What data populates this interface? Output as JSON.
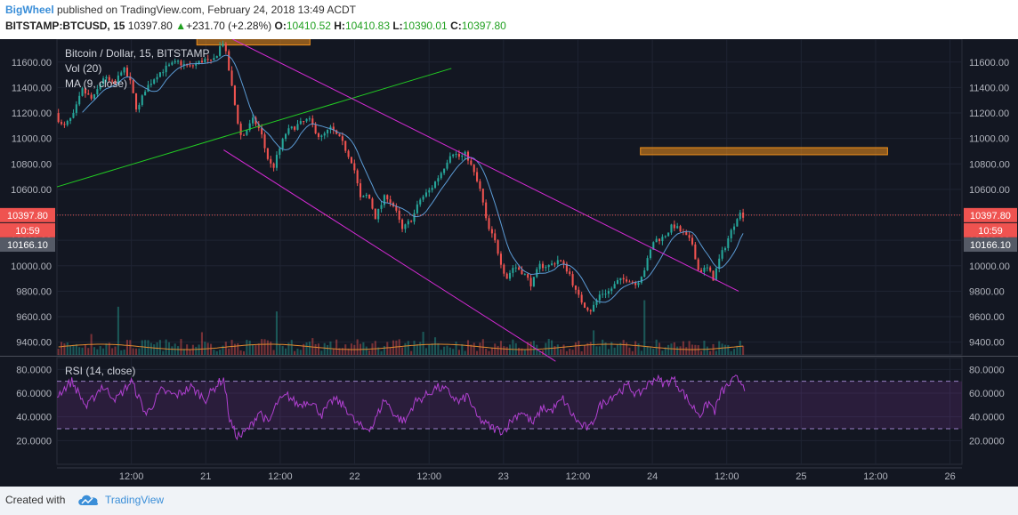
{
  "header": {
    "author": "BigWheel",
    "published_text": " published on TradingView.com, February 24, 2018 13:49 ACDT",
    "symbol": "BITSTAMP:BTCUSD, 15",
    "last": "10397.80",
    "change": "+231.70 (+2.28%)",
    "o_label": "O:",
    "o_value": "10410.52",
    "h_label": "H:",
    "h_value": "10410.83",
    "l_label": "L:",
    "l_value": "10390.01",
    "c_label": "C:",
    "c_value": "10397.80"
  },
  "legend": {
    "main": "Bitcoin / Dollar, 15, BITSTAMP",
    "vol": "Vol (20)",
    "ma": "MA (9, close)",
    "rsi": "RSI (14, close)"
  },
  "badges": {
    "price": "10397.80",
    "countdown": "10:59",
    "ma_value": "10166.10"
  },
  "footer": {
    "created_with": "Created with",
    "brand": "TradingView"
  },
  "colors": {
    "background": "#131722",
    "up": "#26a69a",
    "down": "#ef5350",
    "channel": "#d42ad4",
    "trendline": "#22cc22",
    "zone": "#f0901c",
    "rsi": "#b040d0",
    "ma": "#5b9bd5",
    "vol_ma": "#e08a30"
  },
  "chart_data": [
    {
      "type": "candlestick",
      "title": "Bitcoin / Dollar, 15, BITSTAMP",
      "interval": "15",
      "ylim": [
        9300,
        11780
      ],
      "y_ticks": [
        9400,
        9600,
        9800,
        10000,
        10200,
        10400,
        10600,
        10800,
        11000,
        11200,
        11400,
        11600
      ],
      "y_tick_labels": [
        "9400.00",
        "9600.00",
        "9800.00",
        "10000.00",
        "10200.00",
        "10400.00",
        "10600.00",
        "10800.00",
        "11000.00",
        "11200.00",
        "11400.00",
        "11600.00"
      ],
      "x_ticks": [
        "12:00",
        "21",
        "12:00",
        "22",
        "12:00",
        "23",
        "12:00",
        "24",
        "12:00",
        "25",
        "12:00",
        "26"
      ],
      "x_tick_pos_days": [
        0.5,
        1.0,
        1.5,
        2.0,
        2.5,
        3.0,
        3.5,
        4.0,
        4.5,
        5.0,
        5.5,
        6.0
      ],
      "x_range_days": [
        0.0,
        6.08
      ],
      "last_price": 10397.8,
      "ma_value": 10166.1,
      "price_path": [
        [
          0.0,
          11200
        ],
        [
          0.05,
          11080
        ],
        [
          0.12,
          11180
        ],
        [
          0.18,
          11380
        ],
        [
          0.25,
          11300
        ],
        [
          0.32,
          11480
        ],
        [
          0.4,
          11420
        ],
        [
          0.45,
          11560
        ],
        [
          0.5,
          11450
        ],
        [
          0.55,
          11210
        ],
        [
          0.6,
          11380
        ],
        [
          0.68,
          11500
        ],
        [
          0.75,
          11560
        ],
        [
          0.82,
          11600
        ],
        [
          0.9,
          11560
        ],
        [
          1.0,
          11620
        ],
        [
          1.05,
          11590
        ],
        [
          1.1,
          11700
        ],
        [
          1.12,
          11780
        ],
        [
          1.15,
          11640
        ],
        [
          1.2,
          11300
        ],
        [
          1.22,
          11160
        ],
        [
          1.25,
          11000
        ],
        [
          1.28,
          11060
        ],
        [
          1.33,
          11150
        ],
        [
          1.38,
          11050
        ],
        [
          1.42,
          10860
        ],
        [
          1.46,
          10760
        ],
        [
          1.5,
          10900
        ],
        [
          1.55,
          11050
        ],
        [
          1.62,
          11100
        ],
        [
          1.7,
          11150
        ],
        [
          1.78,
          11000
        ],
        [
          1.85,
          11080
        ],
        [
          1.92,
          10980
        ],
        [
          2.0,
          10800
        ],
        [
          2.05,
          10520
        ],
        [
          2.1,
          10560
        ],
        [
          2.15,
          10380
        ],
        [
          2.22,
          10560
        ],
        [
          2.28,
          10450
        ],
        [
          2.33,
          10280
        ],
        [
          2.4,
          10380
        ],
        [
          2.45,
          10520
        ],
        [
          2.52,
          10600
        ],
        [
          2.6,
          10750
        ],
        [
          2.66,
          10900
        ],
        [
          2.72,
          10850
        ],
        [
          2.76,
          10880
        ],
        [
          2.82,
          10700
        ],
        [
          2.86,
          10570
        ],
        [
          2.9,
          10310
        ],
        [
          2.95,
          10200
        ],
        [
          3.0,
          10000
        ],
        [
          3.03,
          9900
        ],
        [
          3.08,
          10000
        ],
        [
          3.14,
          9950
        ],
        [
          3.2,
          9850
        ],
        [
          3.25,
          10000
        ],
        [
          3.32,
          10000
        ],
        [
          3.38,
          10050
        ],
        [
          3.45,
          9950
        ],
        [
          3.5,
          9780
        ],
        [
          3.56,
          9680
        ],
        [
          3.6,
          9650
        ],
        [
          3.66,
          9780
        ],
        [
          3.72,
          9800
        ],
        [
          3.78,
          9880
        ],
        [
          3.85,
          9900
        ],
        [
          3.9,
          9850
        ],
        [
          3.96,
          9980
        ],
        [
          4.02,
          10200
        ],
        [
          4.08,
          10220
        ],
        [
          4.15,
          10320
        ],
        [
          4.22,
          10250
        ],
        [
          4.28,
          10170
        ],
        [
          4.32,
          9960
        ],
        [
          4.38,
          9980
        ],
        [
          4.42,
          9900
        ],
        [
          4.46,
          10050
        ],
        [
          4.5,
          10160
        ],
        [
          4.55,
          10300
        ],
        [
          4.58,
          10390
        ],
        [
          4.6,
          10410
        ],
        [
          4.62,
          10398
        ]
      ],
      "volume": {
        "ylim": [
          0,
          600
        ]
      },
      "annotations": [
        {
          "type": "zone",
          "from": [
            0.94,
            11762
          ],
          "to": [
            1.7,
            11762
          ]
        },
        {
          "type": "zone",
          "from": [
            3.92,
            10900
          ],
          "to": [
            5.58,
            10900
          ]
        },
        {
          "type": "trendline",
          "color": "green",
          "from": [
            0.0,
            10620
          ],
          "to": [
            2.65,
            11550
          ]
        },
        {
          "type": "channel_line",
          "color": "magenta",
          "from": [
            1.18,
            11780
          ],
          "to": [
            4.58,
            9800
          ]
        },
        {
          "type": "channel_line",
          "color": "magenta",
          "from": [
            1.12,
            10910
          ],
          "to": [
            3.35,
            9250
          ]
        }
      ]
    },
    {
      "type": "line",
      "title": "RSI (14, close)",
      "ylim": [
        0,
        90
      ],
      "y_ticks": [
        20,
        40,
        60,
        80
      ],
      "y_tick_labels": [
        "20.0000",
        "40.0000",
        "60.0000",
        "80.0000"
      ],
      "bands": [
        30,
        70
      ],
      "rsi_path": [
        [
          0.0,
          58
        ],
        [
          0.1,
          70
        ],
        [
          0.2,
          48
        ],
        [
          0.3,
          66
        ],
        [
          0.4,
          55
        ],
        [
          0.5,
          70
        ],
        [
          0.6,
          42
        ],
        [
          0.7,
          62
        ],
        [
          0.8,
          58
        ],
        [
          0.9,
          65
        ],
        [
          1.0,
          55
        ],
        [
          1.08,
          68
        ],
        [
          1.12,
          72
        ],
        [
          1.16,
          38
        ],
        [
          1.2,
          25
        ],
        [
          1.24,
          24
        ],
        [
          1.3,
          32
        ],
        [
          1.36,
          45
        ],
        [
          1.42,
          34
        ],
        [
          1.48,
          52
        ],
        [
          1.55,
          58
        ],
        [
          1.62,
          50
        ],
        [
          1.7,
          54
        ],
        [
          1.78,
          42
        ],
        [
          1.86,
          55
        ],
        [
          1.94,
          48
        ],
        [
          2.0,
          36
        ],
        [
          2.06,
          30
        ],
        [
          2.12,
          32
        ],
        [
          2.2,
          55
        ],
        [
          2.28,
          40
        ],
        [
          2.34,
          36
        ],
        [
          2.4,
          52
        ],
        [
          2.48,
          58
        ],
        [
          2.55,
          65
        ],
        [
          2.62,
          62
        ],
        [
          2.7,
          52
        ],
        [
          2.76,
          58
        ],
        [
          2.82,
          40
        ],
        [
          2.88,
          34
        ],
        [
          2.94,
          30
        ],
        [
          3.0,
          28
        ],
        [
          3.06,
          38
        ],
        [
          3.12,
          45
        ],
        [
          3.2,
          34
        ],
        [
          3.26,
          48
        ],
        [
          3.32,
          45
        ],
        [
          3.4,
          55
        ],
        [
          3.46,
          42
        ],
        [
          3.52,
          33
        ],
        [
          3.58,
          30
        ],
        [
          3.64,
          48
        ],
        [
          3.7,
          55
        ],
        [
          3.78,
          62
        ],
        [
          3.84,
          66
        ],
        [
          3.9,
          58
        ],
        [
          3.96,
          66
        ],
        [
          4.02,
          73
        ],
        [
          4.08,
          68
        ],
        [
          4.14,
          72
        ],
        [
          4.2,
          62
        ],
        [
          4.26,
          50
        ],
        [
          4.32,
          42
        ],
        [
          4.38,
          52
        ],
        [
          4.42,
          45
        ],
        [
          4.46,
          60
        ],
        [
          4.52,
          68
        ],
        [
          4.56,
          72
        ],
        [
          4.6,
          70
        ],
        [
          4.62,
          65
        ]
      ]
    }
  ]
}
